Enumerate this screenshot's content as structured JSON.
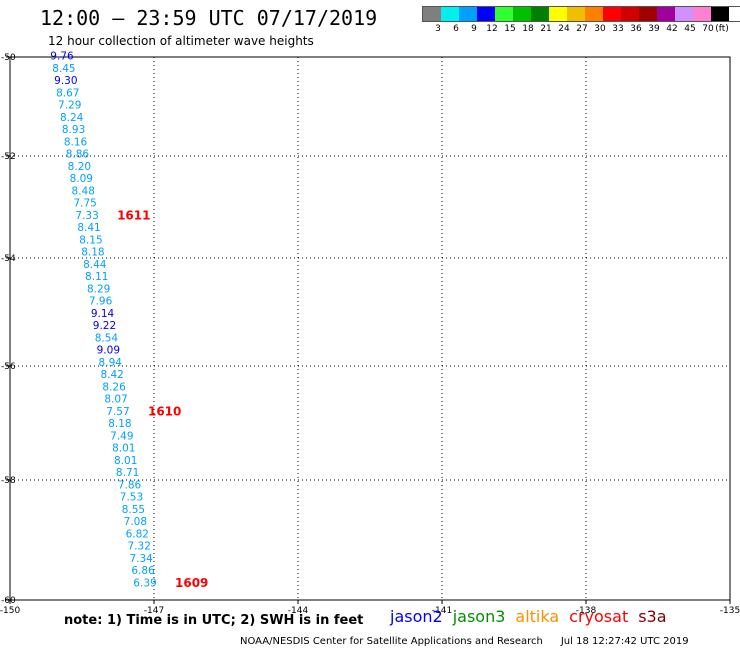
{
  "title": "12:00 – 23:59 UTC 07/17/2019",
  "subtitle": "12 hour collection of altimeter wave heights",
  "legend": {
    "colors": [
      "#7f7f7f",
      "#00f0f0",
      "#00a0ff",
      "#0000ff",
      "#30ff30",
      "#00c000",
      "#008000",
      "#ffff00",
      "#f0c000",
      "#ff8000",
      "#ff0000",
      "#d00000",
      "#a00000",
      "#a000a0",
      "#d090ff",
      "#ff80d0",
      "#000000"
    ],
    "labels": [
      "3",
      "6",
      "9",
      "12",
      "15",
      "18",
      "21",
      "24",
      "27",
      "30",
      "33",
      "36",
      "39",
      "42",
      "45",
      "70",
      "(ft)"
    ]
  },
  "axes": {
    "lon_ticks": [
      "-150",
      "-147",
      "-144",
      "-141",
      "-138",
      "-135"
    ],
    "lat_ticks": [
      "-50",
      "-52",
      "-54",
      "-56",
      "-58",
      "-60"
    ]
  },
  "heights": [
    {
      "v": "9.76",
      "c": "#0000ff"
    },
    {
      "v": "8.45",
      "c": "#00a0ff"
    },
    {
      "v": "9.30",
      "c": "#0000ff"
    },
    {
      "v": "8.67",
      "c": "#00a0ff"
    },
    {
      "v": "7.29",
      "c": "#00a0ff"
    },
    {
      "v": "8.24",
      "c": "#00a0ff"
    },
    {
      "v": "8.93",
      "c": "#00a0ff"
    },
    {
      "v": "8.16",
      "c": "#00a0ff"
    },
    {
      "v": "8.86",
      "c": "#00a0ff"
    },
    {
      "v": "8.20",
      "c": "#00a0ff"
    },
    {
      "v": "8.09",
      "c": "#00a0ff"
    },
    {
      "v": "8.48",
      "c": "#00a0ff"
    },
    {
      "v": "7.75",
      "c": "#00a0ff"
    },
    {
      "v": "7.33",
      "c": "#00a0ff"
    },
    {
      "v": "8.41",
      "c": "#00a0ff"
    },
    {
      "v": "8.15",
      "c": "#00a0ff"
    },
    {
      "v": "8.18",
      "c": "#00a0ff"
    },
    {
      "v": "8.44",
      "c": "#00a0ff"
    },
    {
      "v": "8.11",
      "c": "#00a0ff"
    },
    {
      "v": "8.29",
      "c": "#00a0ff"
    },
    {
      "v": "7.96",
      "c": "#00a0ff"
    },
    {
      "v": "9.14",
      "c": "#0000ff"
    },
    {
      "v": "9.22",
      "c": "#0000ff"
    },
    {
      "v": "8.54",
      "c": "#00a0ff"
    },
    {
      "v": "9.09",
      "c": "#0000ff"
    },
    {
      "v": "8.94",
      "c": "#00a0ff"
    },
    {
      "v": "8.42",
      "c": "#00a0ff"
    },
    {
      "v": "8.26",
      "c": "#00a0ff"
    },
    {
      "v": "8.07",
      "c": "#00a0ff"
    },
    {
      "v": "7.57",
      "c": "#00a0ff"
    },
    {
      "v": "8.18",
      "c": "#00a0ff"
    },
    {
      "v": "7.49",
      "c": "#00a0ff"
    },
    {
      "v": "8.01",
      "c": "#00a0ff"
    },
    {
      "v": "8.01",
      "c": "#00a0ff"
    },
    {
      "v": "8.71",
      "c": "#00a0ff"
    },
    {
      "v": "7.86",
      "c": "#00a0ff"
    },
    {
      "v": "7.53",
      "c": "#00a0ff"
    },
    {
      "v": "8.55",
      "c": "#00a0ff"
    },
    {
      "v": "7.08",
      "c": "#00a0ff"
    },
    {
      "v": "6.82",
      "c": "#00a0ff"
    },
    {
      "v": "7.32",
      "c": "#00a0ff"
    },
    {
      "v": "7.34",
      "c": "#00a0ff"
    },
    {
      "v": "6.86",
      "c": "#00a0ff"
    },
    {
      "v": "6.39",
      "c": "#00a0ff"
    }
  ],
  "times": [
    {
      "v": "1611",
      "row": 13
    },
    {
      "v": "1610",
      "row": 29
    },
    {
      "v": "1609",
      "row": 43
    }
  ],
  "note": "note: 1) Time is in UTC; 2) SWH is in feet",
  "satellites": [
    {
      "name": "jason2",
      "color": "#0000ff"
    },
    {
      "name": "jason3",
      "color": "#009000"
    },
    {
      "name": "altika",
      "color": "#ff9000"
    },
    {
      "name": "cryosat",
      "color": "#ff0000"
    },
    {
      "name": "s3a",
      "color": "#800000"
    }
  ],
  "credit": "NOAA/NESDIS Center for Satellite Applications and Research",
  "credit_time": "Jul 18 12:27:42 UTC 2019"
}
